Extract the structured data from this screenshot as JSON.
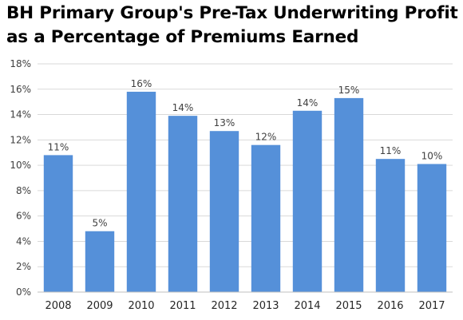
{
  "title_lines": [
    "BH Primary Group's Pre-Tax Underwriting Profit",
    "as a Percentage of Premiums Earned"
  ],
  "colors": {
    "bar": "#5590d9",
    "grid": "#d9d9d9",
    "axis": "#bfbfbf"
  },
  "chart_data": {
    "type": "bar",
    "title": "BH Primary Group's Pre-Tax Underwriting Profit as a Percentage of Premiums Earned",
    "categories": [
      "2008",
      "2009",
      "2010",
      "2011",
      "2012",
      "2013",
      "2014",
      "2015",
      "2016",
      "2017"
    ],
    "values": [
      10.8,
      4.8,
      15.8,
      13.9,
      12.7,
      11.6,
      14.3,
      15.3,
      10.5,
      10.1
    ],
    "data_labels": [
      "11%",
      "5%",
      "16%",
      "14%",
      "13%",
      "12%",
      "14%",
      "15%",
      "11%",
      "10%"
    ],
    "y_ticks": [
      "0%",
      "2%",
      "4%",
      "6%",
      "8%",
      "10%",
      "12%",
      "14%",
      "16%",
      "18%"
    ],
    "ylim": [
      0,
      18
    ],
    "xlabel": "",
    "ylabel": "",
    "grid": true
  }
}
